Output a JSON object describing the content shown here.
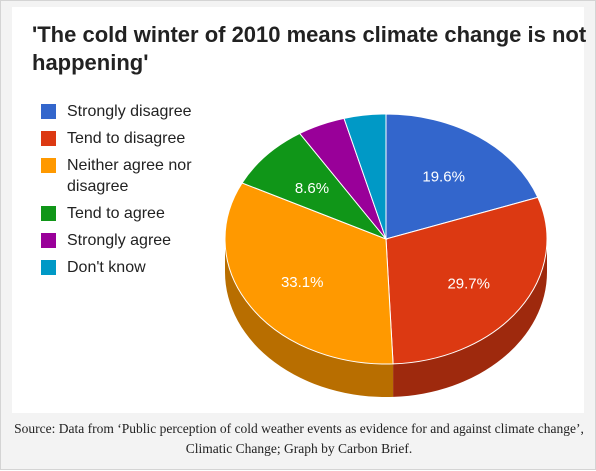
{
  "chart_data": {
    "type": "pie",
    "title": "'The cold winter of 2010 means climate change is not happening'",
    "legend_position": "left",
    "slices": [
      {
        "label": "Strongly disagree",
        "value": 19.6,
        "value_label": "19.6%",
        "color": "#3366cc"
      },
      {
        "label": "Tend to disagree",
        "value": 29.7,
        "value_label": "29.7%",
        "color": "#dc3912"
      },
      {
        "label": "Neither agree nor disagree",
        "value": 33.1,
        "value_label": "33.1%",
        "color": "#ff9900"
      },
      {
        "label": "Tend to agree",
        "value": 8.6,
        "value_label": "8.6%",
        "color": "#109618"
      },
      {
        "label": "Strongly agree",
        "value": 4.8,
        "value_label": "",
        "color": "#990099"
      },
      {
        "label": "Don't know",
        "value": 4.2,
        "value_label": "",
        "color": "#0099c6"
      }
    ]
  },
  "caption": "Source: Data from ‘Public perception of cold weather events as evidence for and against climate change’, Climatic Change; Graph by Carbon Brief."
}
